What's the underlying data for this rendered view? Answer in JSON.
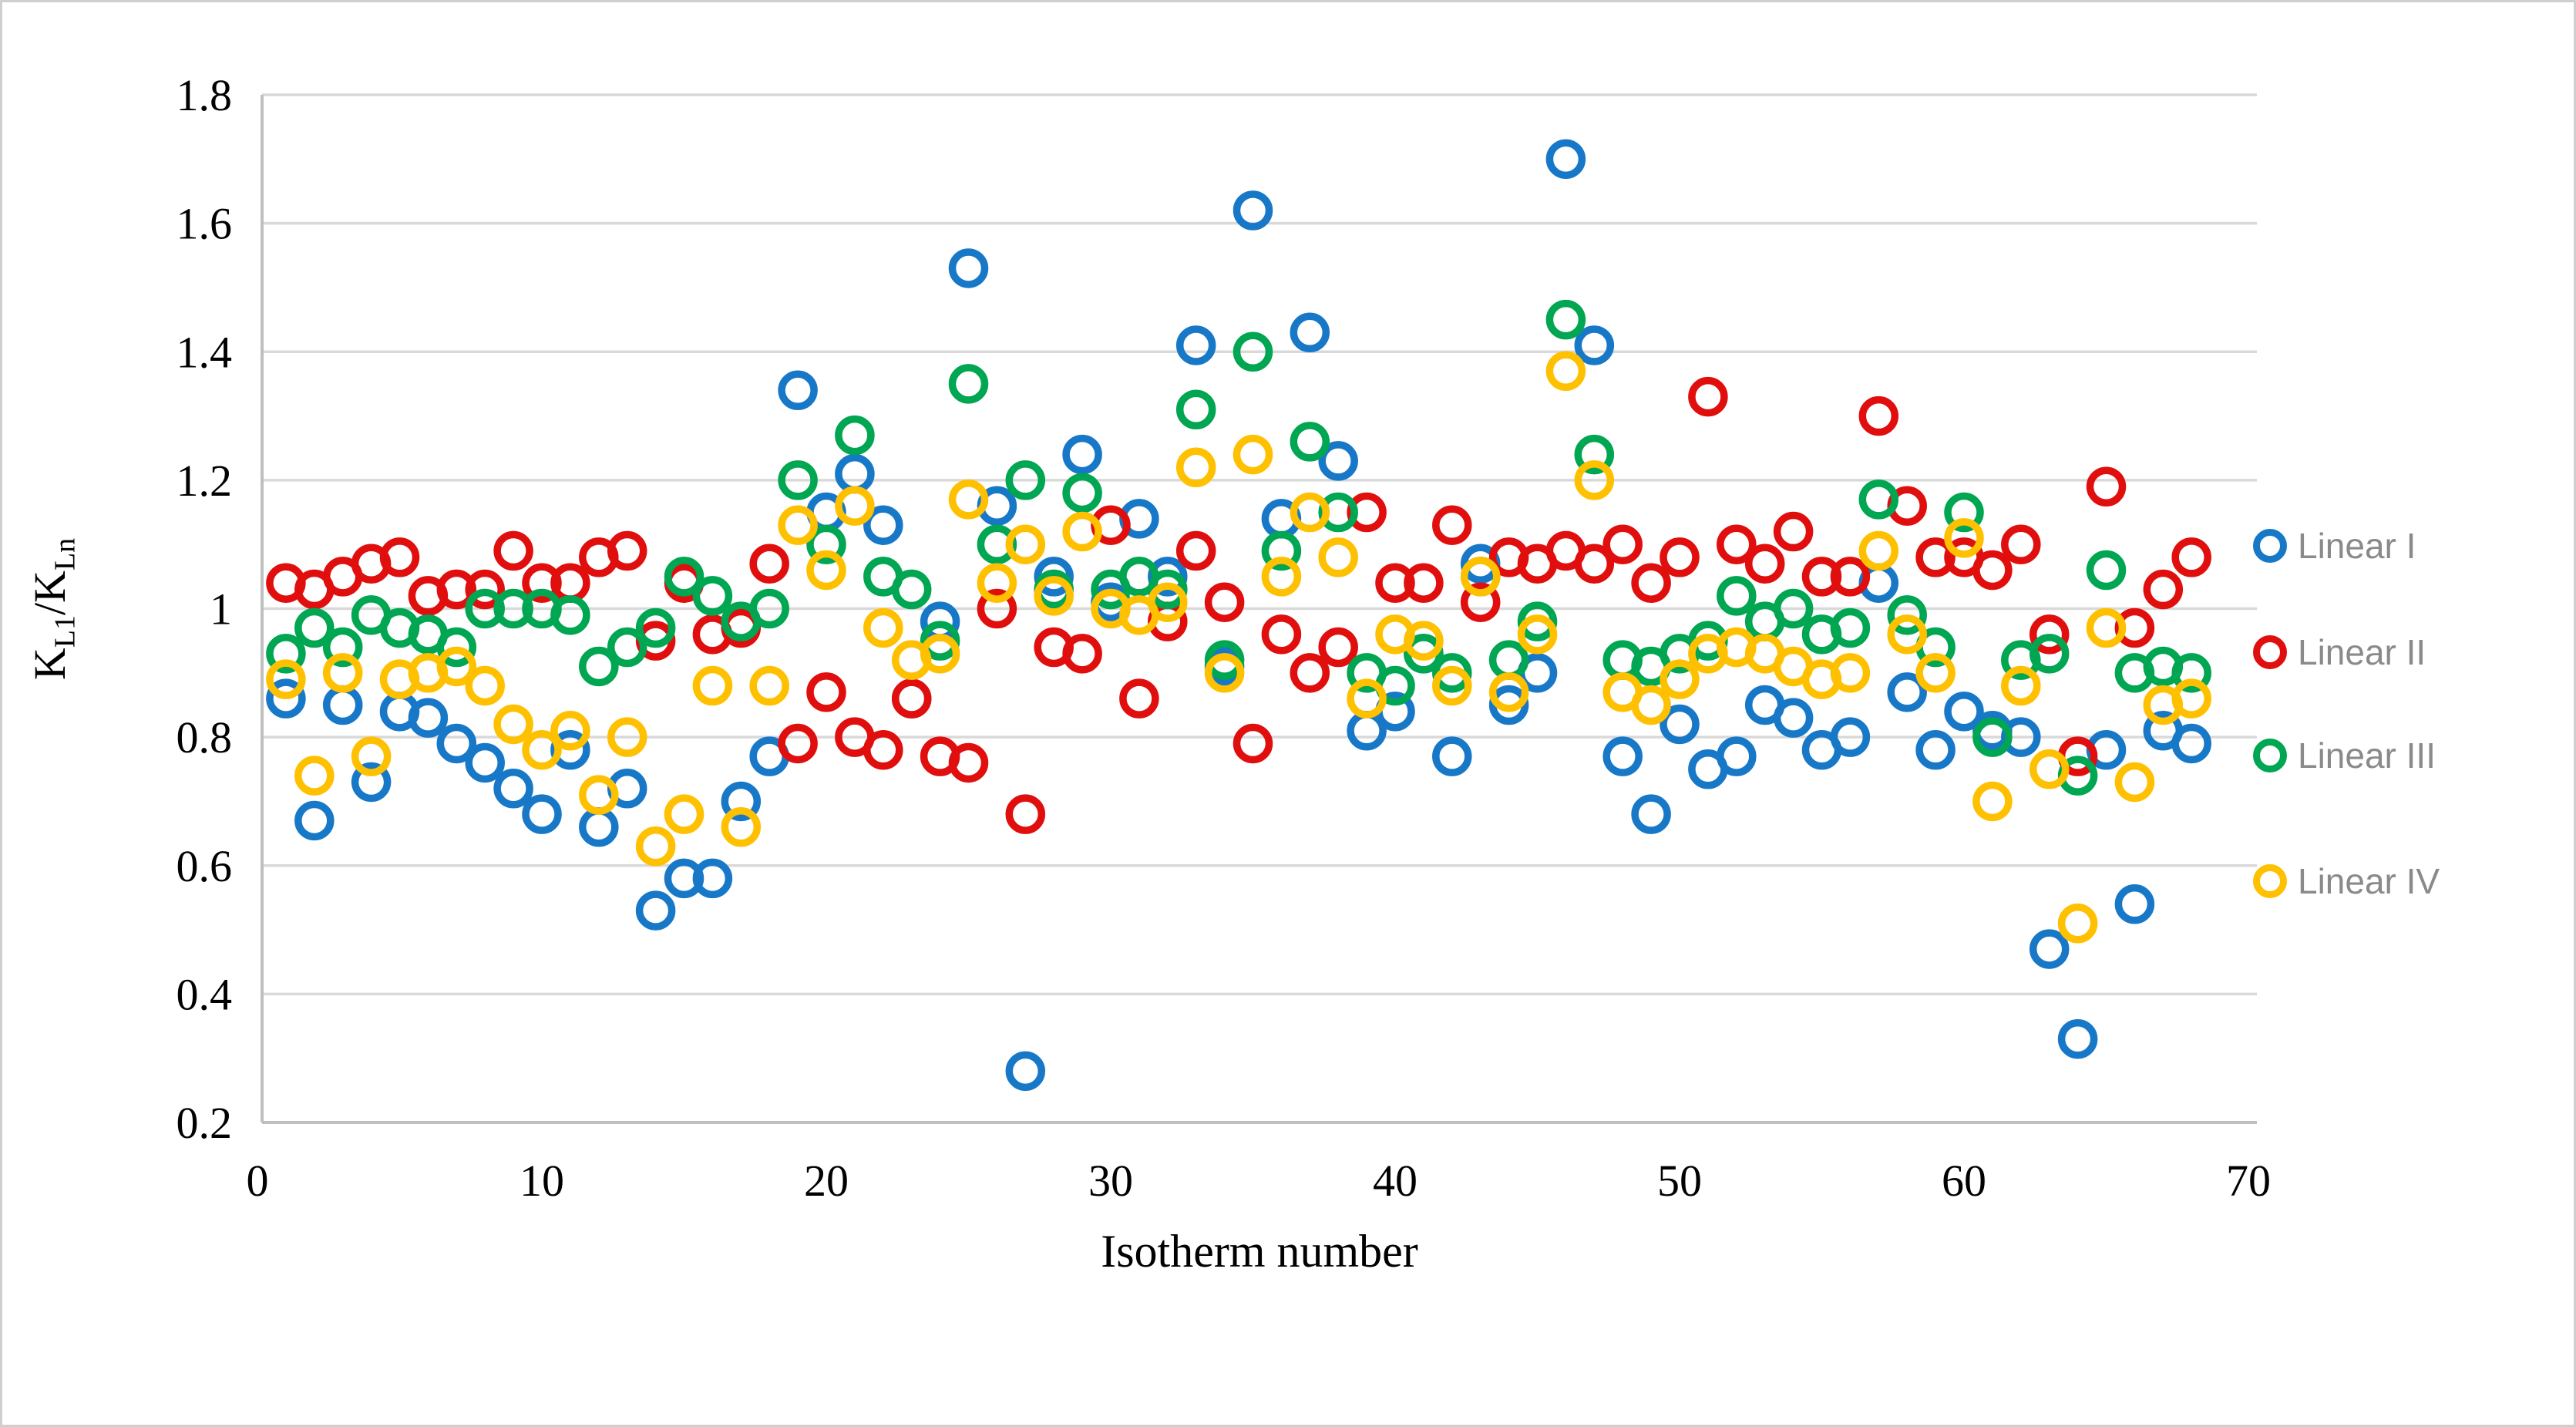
{
  "chart_data": {
    "type": "scatter",
    "title": "",
    "xlabel": "Isotherm number",
    "ylabel": "K_L1/K_Ln",
    "ylabel_parts": {
      "base1": "K",
      "sub1": "L1",
      "base2": "/K",
      "sub2": "Ln"
    },
    "xlim": [
      0,
      70
    ],
    "ylim": [
      0.2,
      1.8
    ],
    "x_ticks": [
      0,
      10,
      20,
      30,
      40,
      50,
      60,
      70
    ],
    "y_ticks": [
      0.2,
      0.4,
      0.6,
      0.8,
      1,
      1.2,
      1.4,
      1.6,
      1.8
    ],
    "grid": "horizontal",
    "legend_position": "right",
    "marker": "open-circle",
    "x": [
      1,
      2,
      3,
      4,
      5,
      6,
      7,
      8,
      9,
      10,
      11,
      12,
      13,
      14,
      15,
      16,
      17,
      18,
      19,
      20,
      21,
      22,
      23,
      24,
      25,
      26,
      27,
      28,
      29,
      30,
      31,
      32,
      33,
      34,
      35,
      36,
      37,
      38,
      39,
      40,
      41,
      42,
      43,
      44,
      45,
      46,
      47,
      48,
      49,
      50,
      51,
      52,
      53,
      54,
      55,
      56,
      57,
      58,
      59,
      60,
      61,
      62,
      63,
      64,
      65,
      66,
      67,
      68
    ],
    "series": [
      {
        "name": "Linear I",
        "color": "#1878c8",
        "values": [
          0.86,
          0.67,
          0.85,
          0.73,
          0.84,
          0.83,
          0.79,
          0.76,
          0.72,
          0.68,
          0.78,
          0.66,
          0.72,
          0.53,
          0.58,
          0.58,
          0.7,
          0.77,
          1.34,
          1.15,
          1.21,
          1.13,
          0.86,
          0.98,
          1.53,
          1.16,
          0.28,
          1.05,
          1.24,
          1.01,
          1.14,
          1.05,
          1.41,
          0.91,
          1.62,
          1.14,
          1.43,
          1.23,
          0.81,
          0.84,
          0.93,
          0.77,
          1.07,
          0.85,
          0.9,
          1.7,
          1.41,
          0.77,
          0.68,
          0.82,
          0.75,
          0.77,
          0.85,
          0.83,
          0.78,
          0.8,
          1.04,
          0.87,
          0.78,
          0.84,
          0.81,
          0.8,
          0.47,
          0.33,
          0.78,
          0.54,
          0.81,
          0.79
        ]
      },
      {
        "name": "Linear II",
        "color": "#e10e0e",
        "values": [
          1.04,
          1.03,
          1.05,
          1.07,
          1.08,
          1.02,
          1.03,
          1.03,
          1.09,
          1.04,
          1.04,
          1.08,
          1.09,
          0.95,
          1.04,
          0.96,
          0.97,
          1.07,
          0.79,
          0.87,
          0.8,
          0.78,
          0.86,
          0.77,
          0.76,
          1.0,
          0.68,
          0.94,
          0.93,
          1.13,
          0.86,
          0.98,
          1.09,
          1.01,
          0.79,
          0.96,
          0.9,
          0.94,
          1.15,
          1.04,
          1.04,
          1.13,
          1.01,
          1.08,
          1.07,
          1.09,
          1.07,
          1.1,
          1.04,
          1.08,
          1.33,
          1.1,
          1.07,
          1.12,
          1.05,
          1.05,
          1.3,
          1.16,
          1.08,
          1.08,
          1.06,
          1.1,
          0.96,
          0.77,
          1.19,
          0.97,
          1.03,
          1.08
        ]
      },
      {
        "name": "Linear III",
        "color": "#00a651",
        "values": [
          0.93,
          0.97,
          0.94,
          0.99,
          0.97,
          0.96,
          0.94,
          1.0,
          1.0,
          1.0,
          0.99,
          0.91,
          0.94,
          0.97,
          1.05,
          1.02,
          0.98,
          1.0,
          1.2,
          1.1,
          1.27,
          1.05,
          1.03,
          0.95,
          1.35,
          1.1,
          1.2,
          1.03,
          1.18,
          1.03,
          1.05,
          1.03,
          1.31,
          0.92,
          1.4,
          1.09,
          1.26,
          1.15,
          0.9,
          0.88,
          0.93,
          0.9,
          1.05,
          0.92,
          0.98,
          1.45,
          1.24,
          0.92,
          0.91,
          0.93,
          0.95,
          1.02,
          0.98,
          1.0,
          0.96,
          0.97,
          1.17,
          0.99,
          0.94,
          1.15,
          0.8,
          0.92,
          0.93,
          0.74,
          1.06,
          0.9,
          0.91,
          0.9
        ]
      },
      {
        "name": "Linear IV",
        "color": "#ffc000",
        "values": [
          0.89,
          0.74,
          0.9,
          0.77,
          0.89,
          0.9,
          0.91,
          0.88,
          0.82,
          0.78,
          0.81,
          0.71,
          0.8,
          0.63,
          0.68,
          0.88,
          0.66,
          0.88,
          1.13,
          1.06,
          1.16,
          0.97,
          0.92,
          0.93,
          1.17,
          1.04,
          1.1,
          1.02,
          1.12,
          1.0,
          0.99,
          1.01,
          1.22,
          0.9,
          1.24,
          1.05,
          1.15,
          1.08,
          0.86,
          0.96,
          0.95,
          0.88,
          1.05,
          0.87,
          0.96,
          1.37,
          1.2,
          0.87,
          0.85,
          0.89,
          0.93,
          0.94,
          0.93,
          0.91,
          0.89,
          0.9,
          1.09,
          0.96,
          0.9,
          1.11,
          0.7,
          0.88,
          0.75,
          0.51,
          0.97,
          0.73,
          0.85,
          0.86
        ]
      }
    ]
  },
  "legend": {
    "items": [
      {
        "label": "Linear I",
        "color": "#1878c8"
      },
      {
        "label": "Linear II",
        "color": "#e10e0e"
      },
      {
        "label": "Linear III",
        "color": "#00a651"
      },
      {
        "label": "Linear IV",
        "color": "#ffc000"
      }
    ]
  },
  "style": {
    "grid_color": "#d9d9d9",
    "axis_color": "#bfbfbf",
    "tick_color": "#000000",
    "legend_text_color": "#8a8a8a",
    "background": "#ffffff"
  }
}
